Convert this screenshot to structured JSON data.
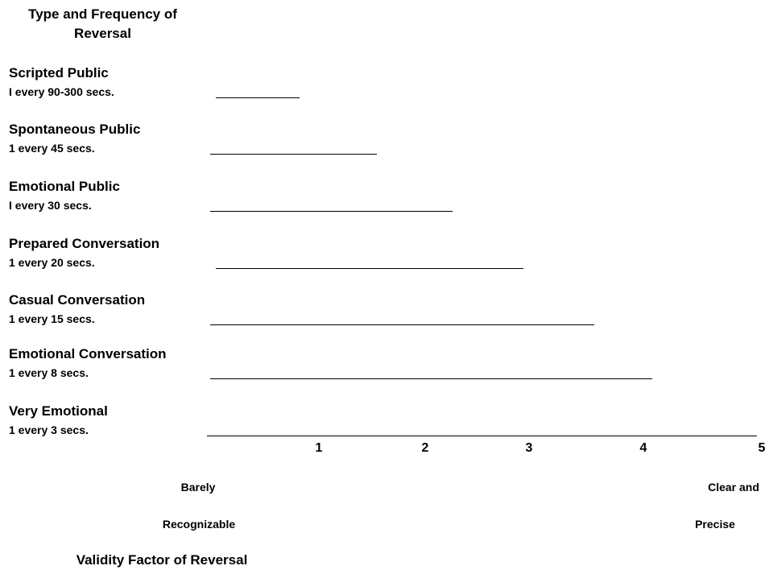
{
  "title": "Type and Frequency of Reversal",
  "items": [
    {
      "name": "Scripted Public",
      "frequency": "I every 90-300 secs."
    },
    {
      "name": "Spontaneous Public",
      "frequency": "1 every 45 secs."
    },
    {
      "name": "Emotional Public",
      "frequency": "I every 30 secs."
    },
    {
      "name": "Prepared Conversation",
      "frequency": "1 every 20 secs."
    },
    {
      "name": "Casual Conversation",
      "frequency": "1 every 15 secs."
    },
    {
      "name": "Emotional Conversation",
      "frequency": "1 every 8 secs."
    },
    {
      "name": "Very Emotional",
      "frequency": "1 every 3 secs."
    }
  ],
  "scale": [
    "1",
    "2",
    "3",
    "4",
    "5"
  ],
  "low_label": [
    "Barely",
    "Recognizable"
  ],
  "high_label": [
    "Clear and",
    "Precise"
  ],
  "footer": "Validity Factor of Reversal"
}
